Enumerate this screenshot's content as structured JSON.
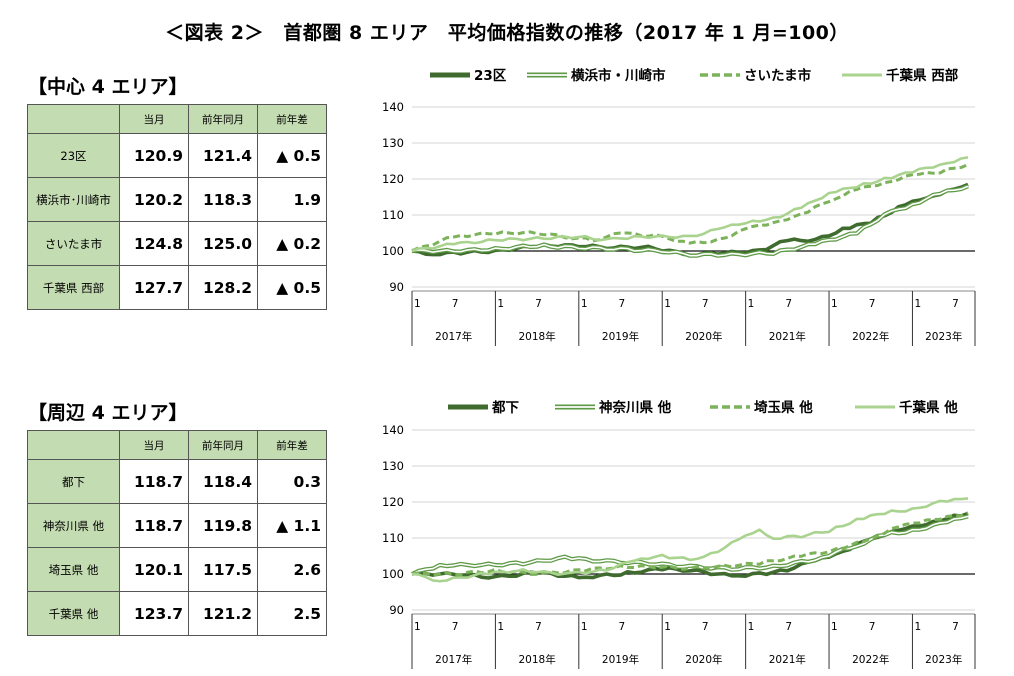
{
  "figure_title": "＜図表 2＞　首都圏 8 エリア　平均価格指数の推移（2017 年 1 月=100）",
  "colors": {
    "series1": "#3f6b2e",
    "series2": "#5e9a46",
    "series3": "#7cb25a",
    "series4": "#a9d38e",
    "header_bg": "#c4dcb2"
  },
  "sections": [
    {
      "title": "【中心 4 エリア】",
      "table": {
        "headers": [
          "当月",
          "前年同月",
          "前年差"
        ],
        "rows": [
          {
            "label": "23区",
            "values": [
              "120.9",
              "121.4",
              "▲ 0.5"
            ]
          },
          {
            "label": "横浜市･川崎市",
            "values": [
              "120.2",
              "118.3",
              "1.9"
            ]
          },
          {
            "label": "さいたま市",
            "values": [
              "124.8",
              "125.0",
              "▲ 0.2"
            ]
          },
          {
            "label": "千葉県 西部",
            "values": [
              "127.7",
              "128.2",
              "▲ 0.5"
            ]
          }
        ]
      }
    },
    {
      "title": "【周辺 4 エリア】",
      "table": {
        "headers": [
          "当月",
          "前年同月",
          "前年差"
        ],
        "rows": [
          {
            "label": "都下",
            "values": [
              "118.7",
              "118.4",
              "0.3"
            ]
          },
          {
            "label": "神奈川県 他",
            "values": [
              "118.7",
              "119.8",
              "▲ 1.1"
            ]
          },
          {
            "label": "埼玉県 他",
            "values": [
              "120.1",
              "117.5",
              "2.6"
            ]
          },
          {
            "label": "千葉県 他",
            "values": [
              "123.7",
              "121.2",
              "2.5"
            ]
          }
        ]
      }
    }
  ],
  "chart_data": [
    {
      "type": "line",
      "ylim": [
        90,
        140
      ],
      "yticks": [
        90,
        100,
        110,
        120,
        130,
        140
      ],
      "reference_line": 100,
      "month_ticks": [
        "1",
        "7"
      ],
      "years": [
        "2017年",
        "2018年",
        "2019年",
        "2020年",
        "2021年",
        "2022年",
        "2023年"
      ],
      "legend_position": "top",
      "series": [
        {
          "name": "23区",
          "style": "thick",
          "anchors": [
            [
              0,
              100
            ],
            [
              2,
              99
            ],
            [
              6,
              99.5
            ],
            [
              12,
              100
            ],
            [
              18,
              101.5
            ],
            [
              24,
              101.5
            ],
            [
              28,
              101
            ],
            [
              34,
              101
            ],
            [
              40,
              99
            ],
            [
              45,
              99.5
            ],
            [
              50,
              100
            ],
            [
              54,
              103
            ],
            [
              58,
              103
            ],
            [
              62,
              106
            ],
            [
              66,
              108
            ],
            [
              70,
              112
            ],
            [
              74,
              115
            ],
            [
              78,
              117
            ],
            [
              82,
              120
            ],
            [
              86,
              122
            ],
            [
              90,
              123
            ],
            [
              94,
              124
            ],
            [
              96,
              124.5
            ],
            [
              99,
              121
            ],
            [
              102,
              120.5
            ],
            [
              104,
              120.9
            ]
          ],
          "values": []
        },
        {
          "name": "横浜市・川崎市",
          "style": "double",
          "anchors": [
            [
              0,
              100
            ],
            [
              6,
              100
            ],
            [
              12,
              100.5
            ],
            [
              18,
              101.5
            ],
            [
              24,
              101
            ],
            [
              30,
              100.5
            ],
            [
              36,
              100
            ],
            [
              40,
              99
            ],
            [
              46,
              99
            ],
            [
              52,
              99.5
            ],
            [
              58,
              102
            ],
            [
              64,
              105
            ],
            [
              68,
              110
            ],
            [
              72,
              113
            ],
            [
              76,
              116
            ],
            [
              80,
              118
            ],
            [
              84,
              119
            ],
            [
              90,
              120
            ],
            [
              94,
              120.5
            ],
            [
              96,
              121.5
            ],
            [
              100,
              121
            ],
            [
              104,
              120.2
            ]
          ],
          "values": []
        },
        {
          "name": "さいたま市",
          "style": "dashed",
          "anchors": [
            [
              0,
              100
            ],
            [
              6,
              104
            ],
            [
              12,
              105
            ],
            [
              18,
              105
            ],
            [
              22,
              104
            ],
            [
              26,
              103
            ],
            [
              30,
              105
            ],
            [
              36,
              104
            ],
            [
              40,
              102
            ],
            [
              44,
              103
            ],
            [
              48,
              106
            ],
            [
              52,
              108
            ],
            [
              56,
              110
            ],
            [
              60,
              114
            ],
            [
              64,
              117
            ],
            [
              68,
              119
            ],
            [
              72,
              121
            ],
            [
              76,
              122
            ],
            [
              80,
              124
            ],
            [
              84,
              126
            ],
            [
              88,
              127
            ],
            [
              92,
              127.5
            ],
            [
              96,
              128
            ],
            [
              100,
              126
            ],
            [
              104,
              124.8
            ]
          ],
          "values": []
        },
        {
          "name": "千葉県 西部",
          "style": "light",
          "anchors": [
            [
              0,
              100
            ],
            [
              6,
              102
            ],
            [
              12,
              103
            ],
            [
              18,
              103.5
            ],
            [
              24,
              104
            ],
            [
              28,
              103
            ],
            [
              32,
              104
            ],
            [
              36,
              104
            ],
            [
              40,
              104
            ],
            [
              44,
              106
            ],
            [
              48,
              108
            ],
            [
              52,
              109
            ],
            [
              56,
              112
            ],
            [
              60,
              116
            ],
            [
              64,
              118
            ],
            [
              68,
              120
            ],
            [
              72,
              122
            ],
            [
              76,
              124
            ],
            [
              80,
              126
            ],
            [
              84,
              128
            ],
            [
              88,
              129
            ],
            [
              92,
              129.5
            ],
            [
              96,
              130
            ],
            [
              100,
              128
            ],
            [
              104,
              127.7
            ]
          ],
          "values": []
        }
      ]
    },
    {
      "type": "line",
      "ylim": [
        90,
        140
      ],
      "yticks": [
        90,
        100,
        110,
        120,
        130,
        140
      ],
      "reference_line": 100,
      "month_ticks": [
        "1",
        "7"
      ],
      "years": [
        "2017年",
        "2018年",
        "2019年",
        "2020年",
        "2021年",
        "2022年",
        "2023年"
      ],
      "legend_position": "top",
      "series": [
        {
          "name": "都下",
          "style": "thick",
          "anchors": [
            [
              0,
              100
            ],
            [
              6,
              100
            ],
            [
              12,
              99
            ],
            [
              18,
              100.5
            ],
            [
              24,
              99
            ],
            [
              30,
              100
            ],
            [
              36,
              101.5
            ],
            [
              40,
              101
            ],
            [
              46,
              99.5
            ],
            [
              50,
              100
            ],
            [
              54,
              101
            ],
            [
              58,
              104
            ],
            [
              62,
              106
            ],
            [
              66,
              110
            ],
            [
              70,
              112
            ],
            [
              74,
              114
            ],
            [
              78,
              116
            ],
            [
              82,
              117.5
            ],
            [
              86,
              118
            ],
            [
              90,
              118.5
            ],
            [
              94,
              119
            ],
            [
              98,
              119.5
            ],
            [
              100,
              119
            ],
            [
              104,
              118.7
            ]
          ],
          "values": []
        },
        {
          "name": "神奈川県 他",
          "style": "double",
          "anchors": [
            [
              0,
              100
            ],
            [
              4,
              102.5
            ],
            [
              10,
              102.5
            ],
            [
              16,
              103
            ],
            [
              22,
              104.5
            ],
            [
              28,
              103.5
            ],
            [
              34,
              103
            ],
            [
              40,
              102
            ],
            [
              46,
              101.5
            ],
            [
              52,
              102
            ],
            [
              58,
              104
            ],
            [
              64,
              108
            ],
            [
              68,
              111
            ],
            [
              72,
              112
            ],
            [
              76,
              114
            ],
            [
              80,
              116
            ],
            [
              84,
              117
            ],
            [
              88,
              117.5
            ],
            [
              92,
              118.5
            ],
            [
              96,
              120
            ],
            [
              100,
              119.5
            ],
            [
              104,
              118.7
            ]
          ],
          "values": []
        },
        {
          "name": "埼玉県 他",
          "style": "dashed",
          "anchors": [
            [
              0,
              100
            ],
            [
              6,
              100
            ],
            [
              12,
              101
            ],
            [
              18,
              100
            ],
            [
              24,
              101
            ],
            [
              30,
              102
            ],
            [
              36,
              102
            ],
            [
              40,
              101.5
            ],
            [
              44,
              102
            ],
            [
              50,
              103
            ],
            [
              56,
              105
            ],
            [
              62,
              107
            ],
            [
              66,
              110
            ],
            [
              70,
              113
            ],
            [
              74,
              115
            ],
            [
              78,
              116
            ],
            [
              82,
              118
            ],
            [
              86,
              119
            ],
            [
              90,
              119
            ],
            [
              94,
              120
            ],
            [
              98,
              120.5
            ],
            [
              104,
              120.1
            ]
          ],
          "values": []
        },
        {
          "name": "千葉県 他",
          "style": "light",
          "anchors": [
            [
              0,
              100
            ],
            [
              4,
              98
            ],
            [
              10,
              100
            ],
            [
              16,
              101
            ],
            [
              22,
              100
            ],
            [
              28,
              101
            ],
            [
              32,
              104
            ],
            [
              36,
              105
            ],
            [
              40,
              104
            ],
            [
              44,
              106
            ],
            [
              48,
              111
            ],
            [
              50,
              112
            ],
            [
              52,
              110
            ],
            [
              56,
              110.5
            ],
            [
              60,
              112
            ],
            [
              64,
              115
            ],
            [
              68,
              117
            ],
            [
              72,
              118
            ],
            [
              76,
              120
            ],
            [
              80,
              121
            ],
            [
              84,
              121.5
            ],
            [
              88,
              122
            ],
            [
              92,
              123
            ],
            [
              94,
              124
            ],
            [
              96,
              125
            ],
            [
              100,
              124.5
            ],
            [
              104,
              123.7
            ]
          ],
          "values": []
        }
      ]
    }
  ]
}
